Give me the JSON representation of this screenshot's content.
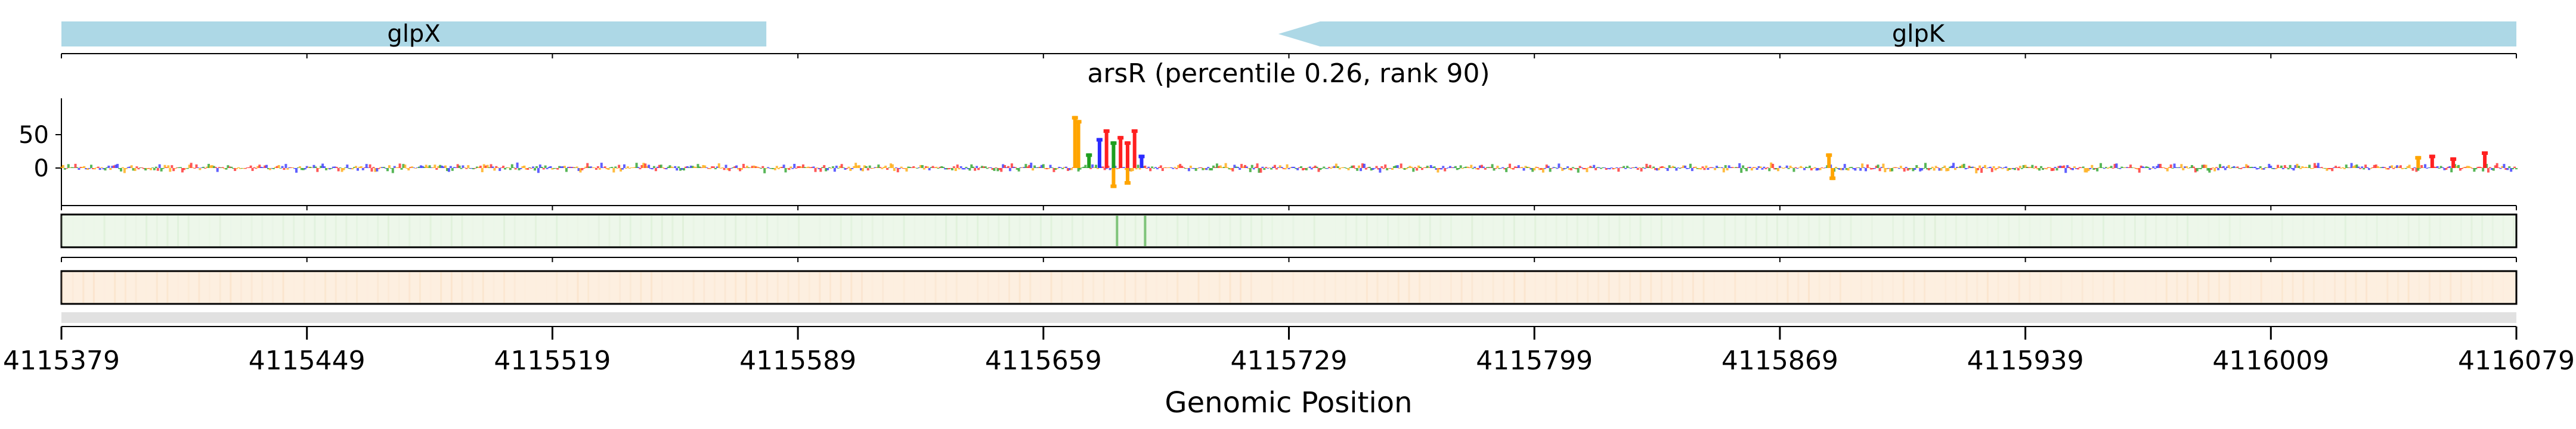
{
  "chart_data": {
    "type": "sequence-logo-track",
    "title": "arsR (percentile 0.26, rank 90)",
    "xlabel": "Genomic Position",
    "xlim": [
      4115379,
      4116079
    ],
    "x_ticks": [
      "4115379",
      "4115449",
      "4115519",
      "4115589",
      "4115659",
      "4115729",
      "4115799",
      "4115869",
      "4115939",
      "4116009",
      "4116079"
    ],
    "ylabel": "",
    "y_ticks": [
      "50",
      "0"
    ],
    "ylim": [
      -35,
      85
    ],
    "genes": [
      {
        "name": "glpX",
        "start": 4115379,
        "end": 4115580,
        "strand": "+",
        "color": "#add8e6"
      },
      {
        "name": "glpK",
        "start": 4115726,
        "end": 4116079,
        "strand": "-",
        "color": "#add8e6"
      }
    ],
    "motif_peaks": [
      {
        "x": 4115668,
        "value": 78,
        "base": "G"
      },
      {
        "x": 4115669,
        "value": 72,
        "base": "G"
      },
      {
        "x": 4115672,
        "value": 22,
        "base": "A"
      },
      {
        "x": 4115675,
        "value": 45,
        "base": "C"
      },
      {
        "x": 4115677,
        "value": 58,
        "base": "T"
      },
      {
        "x": 4115679,
        "value": 40,
        "base": "A"
      },
      {
        "x": 4115681,
        "value": 48,
        "base": "T"
      },
      {
        "x": 4115683,
        "value": 40,
        "base": "T"
      },
      {
        "x": 4115685,
        "value": 58,
        "base": "T"
      },
      {
        "x": 4115687,
        "value": 20,
        "base": "C"
      },
      {
        "x": 4115679,
        "value": -30,
        "base": "G"
      },
      {
        "x": 4115683,
        "value": -25,
        "base": "G"
      },
      {
        "x": 4115883,
        "value": 22,
        "base": "G"
      },
      {
        "x": 4115884,
        "value": -18,
        "base": "G"
      },
      {
        "x": 4116051,
        "value": 18,
        "base": "G"
      },
      {
        "x": 4116055,
        "value": 20,
        "base": "T"
      },
      {
        "x": 4116061,
        "value": 16,
        "base": "T"
      },
      {
        "x": 4116070,
        "value": 25,
        "base": "T"
      }
    ],
    "base_colors": {
      "A": "#1f9e1f",
      "C": "#2b2bff",
      "G": "#ffa500",
      "T": "#ff2020"
    },
    "attribution_tracks": [
      {
        "name": "track-1",
        "color": "#e6f4e1",
        "highlights": [
          4115680,
          4115688
        ]
      },
      {
        "name": "track-2",
        "color": "#fdebd7",
        "highlights": []
      }
    ]
  }
}
